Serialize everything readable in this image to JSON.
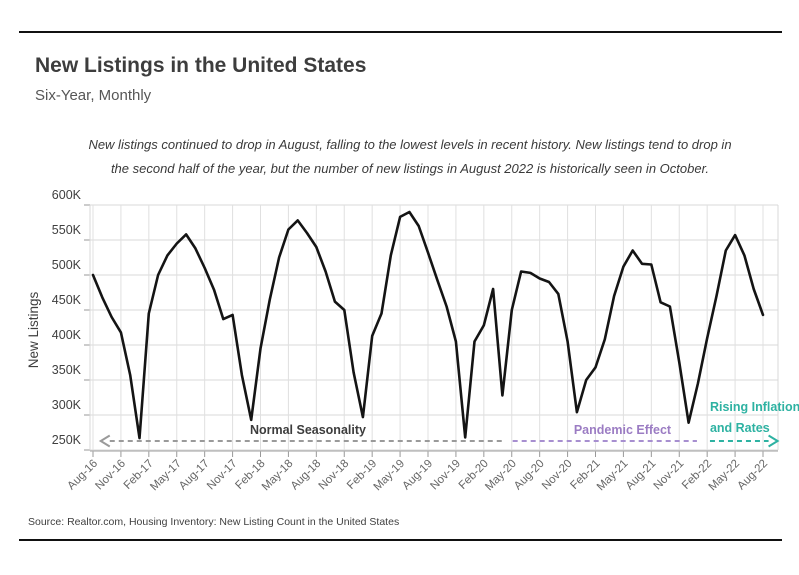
{
  "header": {
    "title": "New Listings in the United States",
    "subtitle": "Six-Year, Monthly"
  },
  "annotation_note": {
    "line1": "New listings continued to drop in August, falling to the lowest levels in recent history. New listings tend to drop in",
    "line2": "the second half of the year, but the number of new listings in August 2022 is historically seen in October."
  },
  "chart_data": {
    "type": "line",
    "ylabel": "New Listings",
    "ylim": [
      250,
      600
    ],
    "yticks": [
      250,
      300,
      350,
      400,
      450,
      500,
      550,
      600
    ],
    "ytick_suffix": "K",
    "x_tick_every": 3,
    "grid": true,
    "months": [
      "Aug-16",
      "Sep-16",
      "Oct-16",
      "Nov-16",
      "Dec-16",
      "Jan-17",
      "Feb-17",
      "Mar-17",
      "Apr-17",
      "May-17",
      "Jun-17",
      "Jul-17",
      "Aug-17",
      "Sep-17",
      "Oct-17",
      "Nov-17",
      "Dec-17",
      "Jan-18",
      "Feb-18",
      "Mar-18",
      "Apr-18",
      "May-18",
      "Jun-18",
      "Jul-18",
      "Aug-18",
      "Sep-18",
      "Oct-18",
      "Nov-18",
      "Dec-18",
      "Jan-19",
      "Feb-19",
      "Mar-19",
      "Apr-19",
      "May-19",
      "Jun-19",
      "Jul-19",
      "Aug-19",
      "Sep-19",
      "Oct-19",
      "Nov-19",
      "Dec-19",
      "Jan-20",
      "Feb-20",
      "Mar-20",
      "Apr-20",
      "May-20",
      "Jun-20",
      "Jul-20",
      "Aug-20",
      "Sep-20",
      "Oct-20",
      "Nov-20",
      "Dec-20",
      "Jan-21",
      "Feb-21",
      "Mar-21",
      "Apr-21",
      "May-21",
      "Jun-21",
      "Jul-21",
      "Aug-21",
      "Sep-21",
      "Oct-21",
      "Nov-21",
      "Dec-21",
      "Jan-22",
      "Feb-22",
      "Mar-22",
      "Apr-22",
      "May-22",
      "Jun-22",
      "Jul-22",
      "Aug-22"
    ],
    "series": [
      {
        "name": "New Listings (thousands)",
        "color": "#141414",
        "values": [
          500,
          468,
          440,
          418,
          357,
          267,
          445,
          500,
          528,
          545,
          558,
          538,
          510,
          479,
          437,
          443,
          357,
          293,
          395,
          465,
          525,
          565,
          578,
          560,
          540,
          505,
          462,
          450,
          361,
          297,
          413,
          445,
          528,
          583,
          590,
          570,
          532,
          493,
          455,
          405,
          268,
          405,
          428,
          480,
          328,
          450,
          505,
          503,
          495,
          490,
          473,
          405,
          304,
          350,
          368,
          408,
          470,
          512,
          535,
          516,
          515,
          461,
          455,
          375,
          289,
          345,
          410,
          470,
          535,
          557,
          528,
          480,
          443
        ]
      }
    ],
    "annotations": [
      {
        "id": "normal-seasonality",
        "label_lines": [
          "Normal Seasonality"
        ],
        "text_color": "#3d3d3d",
        "dash_color": "#9a9a9a",
        "line_start_month": 1.8,
        "line_end_month": 44.3,
        "arrow": "left",
        "label_anchor": "middle",
        "label_month": 23.1
      },
      {
        "id": "pandemic-effect",
        "label_lines": [
          "Pandemic Effect"
        ],
        "text_color": "#9b7cc3",
        "dash_color": "#a78fd0",
        "line_start_month": 45.1,
        "line_end_month": 64.9,
        "arrow": "none",
        "label_anchor": "middle",
        "label_month": 56.9
      },
      {
        "id": "rising-inflation-and-rates",
        "label_lines": [
          "Rising Inflation",
          "and Rates"
        ],
        "text_color": "#2eb2a2",
        "dash_color": "#2eb2a2",
        "line_start_month": 66.3,
        "line_end_month": 72.6,
        "arrow": "right",
        "label_anchor": "start",
        "label_month": 66.3
      }
    ]
  },
  "source": {
    "text": "Source:  Realtor.com, Housing Inventory: New Listing Count in the United States"
  },
  "colors": {
    "line": "#141414",
    "h_grid": "#d8d8d8",
    "v_grid": "#e0e0e0",
    "axis_line": "#b0b0b0",
    "tick": "#999999",
    "x_tick_label": "#666666",
    "y_tick_label": "#3f3f3f",
    "purple": "#9b7cc3",
    "teal": "#2eb2a2",
    "gray_dash": "#9a9a9a"
  }
}
